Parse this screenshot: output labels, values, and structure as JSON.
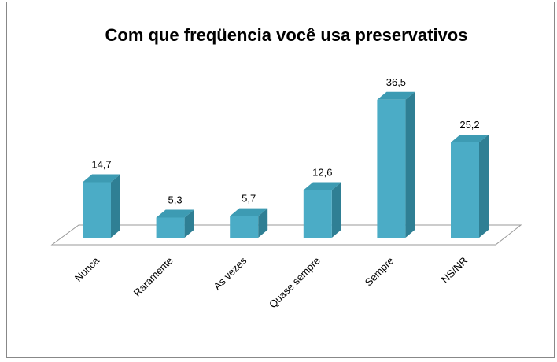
{
  "chart_data": {
    "type": "bar3d",
    "title": "Com que freqüencia você usa preservativos",
    "categories": [
      "Nunca",
      "Raramente",
      "As vezes",
      "Quase sempre",
      "Sempre",
      "NS/NR"
    ],
    "values": [
      14.7,
      5.3,
      5.7,
      12.6,
      36.5,
      25.2
    ],
    "value_labels": [
      "14,7",
      "5,3",
      "5,7",
      "12,6",
      "36,5",
      "25,2"
    ],
    "color": "#4bacc6"
  }
}
